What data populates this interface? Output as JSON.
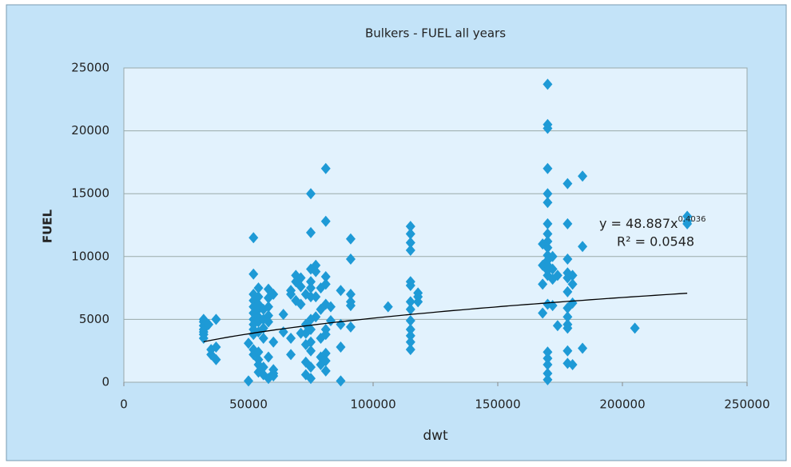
{
  "chart_data": {
    "type": "scatter",
    "title": "Bulkers - FUEL all years",
    "x_label": "dwt",
    "y_label": "FUEL",
    "xlim": [
      0,
      250000
    ],
    "xticks": [
      0,
      50000,
      100000,
      150000,
      200000,
      250000
    ],
    "ylim": [
      0,
      25000
    ],
    "yticks": [
      0,
      5000,
      10000,
      15000,
      20000,
      25000
    ],
    "grid": true,
    "series": [
      {
        "color": "#1e9ad6",
        "x": [
          32000,
          32000,
          32000,
          32000,
          32000,
          32000,
          32000,
          34000,
          35000,
          35000,
          37000,
          37000,
          37000,
          50000,
          50000,
          52000,
          52000,
          52000,
          52000,
          52000,
          52000,
          52000,
          52000,
          52000,
          52000,
          52000,
          52000,
          54000,
          54000,
          54000,
          54000,
          54000,
          54000,
          54000,
          54000,
          54000,
          54000,
          54000,
          56000,
          56000,
          56000,
          56000,
          56000,
          56000,
          58000,
          58000,
          58000,
          58000,
          58000,
          58000,
          58000,
          60000,
          60000,
          60000,
          60000,
          60000,
          64000,
          64000,
          67000,
          67000,
          67000,
          67000,
          69000,
          69000,
          69000,
          71000,
          71000,
          71000,
          71000,
          73000,
          73000,
          73000,
          73000,
          73000,
          73000,
          75000,
          75000,
          75000,
          75000,
          75000,
          75000,
          75000,
          75000,
          75000,
          75000,
          75000,
          75000,
          77000,
          77000,
          77000,
          77000,
          79000,
          79000,
          79000,
          79000,
          79000,
          81000,
          81000,
          81000,
          81000,
          81000,
          81000,
          81000,
          81000,
          81000,
          81000,
          83000,
          83000,
          87000,
          87000,
          87000,
          87000,
          91000,
          91000,
          91000,
          91000,
          91000,
          91000,
          106000,
          115000,
          115000,
          115000,
          115000,
          115000,
          115000,
          115000,
          115000,
          115000,
          115000,
          115000,
          115000,
          115000,
          118000,
          118000,
          118000,
          168000,
          168000,
          168000,
          168000,
          170000,
          170000,
          170000,
          170000,
          170000,
          170000,
          170000,
          170000,
          170000,
          170000,
          170000,
          170000,
          170000,
          170000,
          170000,
          170000,
          170000,
          170000,
          170000,
          170000,
          170000,
          172000,
          172000,
          172000,
          172000,
          174000,
          174000,
          178000,
          178000,
          178000,
          178000,
          178000,
          178000,
          178000,
          178000,
          178000,
          178000,
          178000,
          178000,
          180000,
          180000,
          180000,
          180000,
          184000,
          184000,
          184000,
          205000,
          226000,
          226000,
          226000
        ],
        "values": [
          5000,
          4800,
          4500,
          4200,
          4000,
          3800,
          3500,
          4600,
          2200,
          2600,
          1800,
          2800,
          5000,
          100,
          3100,
          11500,
          8600,
          7000,
          6500,
          6000,
          5500,
          5000,
          4600,
          4200,
          3800,
          2600,
          2200,
          7500,
          6800,
          6200,
          5800,
          5200,
          4800,
          4000,
          2400,
          1800,
          1400,
          800,
          5800,
          5000,
          4300,
          3500,
          1200,
          600,
          7400,
          6700,
          6000,
          5300,
          4800,
          2000,
          300,
          7000,
          3200,
          1000,
          700,
          500,
          5400,
          4000,
          7300,
          7000,
          3500,
          2200,
          8500,
          8000,
          6500,
          8300,
          7600,
          6200,
          3900,
          7000,
          4600,
          3900,
          3000,
          1600,
          600,
          15000,
          11900,
          9000,
          8000,
          7500,
          6800,
          5000,
          4200,
          3200,
          2500,
          1200,
          300,
          9300,
          8800,
          6800,
          5200,
          7500,
          5800,
          3500,
          2000,
          1400,
          17000,
          12800,
          8400,
          7800,
          6200,
          4200,
          3800,
          2300,
          1700,
          900,
          6000,
          4900,
          7300,
          4600,
          2800,
          100,
          11400,
          9800,
          7000,
          6400,
          6100,
          4400,
          6000,
          12400,
          11800,
          11100,
          10500,
          8000,
          7700,
          6400,
          5800,
          4900,
          4200,
          3700,
          3200,
          2600,
          7100,
          6800,
          6400,
          11000,
          9300,
          7800,
          5500,
          23700,
          20500,
          20200,
          17000,
          15000,
          14300,
          12600,
          11800,
          11200,
          10700,
          10100,
          9700,
          9300,
          8900,
          8500,
          6200,
          2400,
          1900,
          1400,
          700,
          200,
          10000,
          9000,
          8200,
          6100,
          8500,
          4500,
          15800,
          12600,
          9800,
          8700,
          8300,
          7200,
          5900,
          5200,
          4600,
          4300,
          2500,
          1500,
          8500,
          7800,
          6300,
          1400,
          16400,
          10800,
          2700,
          4300,
          13200,
          12800,
          12600
        ]
      }
    ],
    "trendline": {
      "coefficient": 48.887,
      "exponent": 0.4036,
      "color": "#000000"
    },
    "annotations": {
      "equation": "y = 48.887x",
      "equation_exponent": "0.4036",
      "r_squared": "R² = 0.0548"
    }
  }
}
